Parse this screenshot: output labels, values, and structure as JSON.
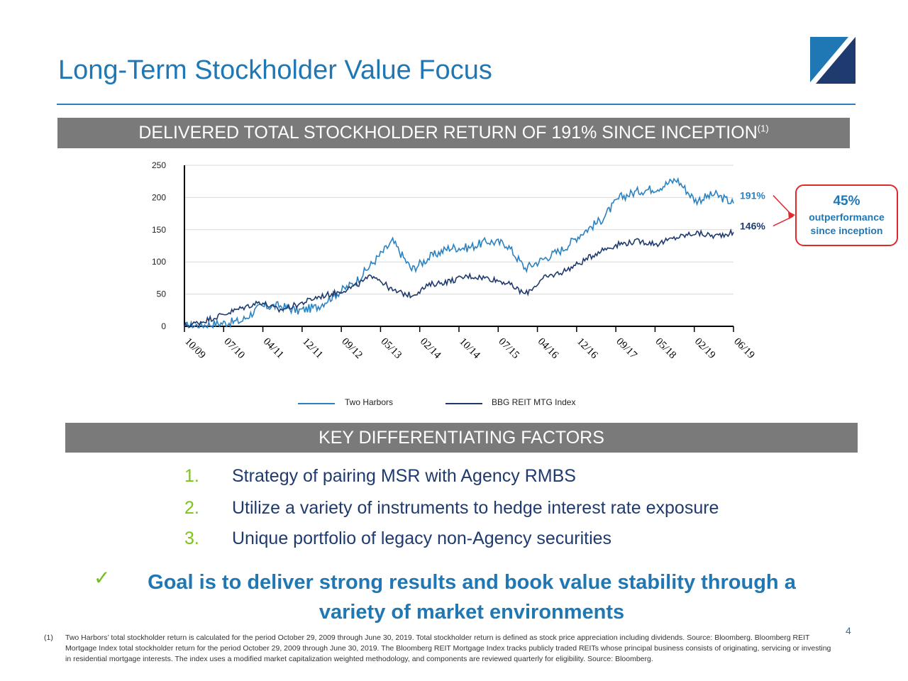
{
  "slide": {
    "title": "Long-Term Stockholder Value Focus",
    "page_number": "4",
    "colors": {
      "title_blue": "#1f77b4",
      "band_gray": "#7a7a7a",
      "navy": "#1f3a6e",
      "green": "#7dc21e",
      "red": "#e0282d"
    }
  },
  "banner": {
    "text": "DELIVERED TOTAL STOCKHOLDER RETURN OF 191% SINCE INCEPTION",
    "footnote_ref": "(1)"
  },
  "chart_data": {
    "type": "line",
    "ylim": [
      0,
      250
    ],
    "yticks": [
      0,
      50,
      100,
      150,
      200,
      250
    ],
    "x_tick_labels": [
      "10/09",
      "07/10",
      "04/11",
      "12/11",
      "09/12",
      "05/13",
      "02/14",
      "10/14",
      "07/15",
      "04/16",
      "12/16",
      "09/17",
      "05/18",
      "02/19",
      "06/19"
    ],
    "grid": "horizontal",
    "legend_position": "bottom",
    "series": [
      {
        "name": "Two Harbors",
        "color": "#2a82c2",
        "end_label": "191%",
        "values": [
          0,
          2,
          5,
          8,
          30,
          32,
          24,
          30,
          50,
          68,
          100,
          132,
          88,
          108,
          122,
          122,
          132,
          128,
          90,
          105,
          120,
          145,
          165,
          200,
          210,
          215,
          228,
          195,
          205,
          191
        ]
      },
      {
        "name": "BBG REIT MTG Index",
        "color": "#1f3a6e",
        "end_label": "146%",
        "values": [
          0,
          8,
          18,
          28,
          38,
          25,
          34,
          45,
          52,
          62,
          80,
          55,
          48,
          65,
          70,
          78,
          75,
          68,
          50,
          75,
          85,
          100,
          118,
          128,
          132,
          128,
          138,
          145,
          140,
          146
        ]
      }
    ]
  },
  "callout": {
    "value": "45%",
    "line1": "outperformance",
    "line2": "since inception"
  },
  "section2": {
    "header": "KEY DIFFERENTIATING FACTORS"
  },
  "factors": [
    {
      "num": "1.",
      "text": "Strategy of pairing MSR with Agency RMBS"
    },
    {
      "num": "2.",
      "text": "Utilize a variety of instruments to hedge interest rate exposure"
    },
    {
      "num": "3.",
      "text": "Unique portfolio of legacy non-Agency securities"
    }
  ],
  "goal": {
    "check": "✓",
    "line1": "Goal is to deliver strong results and book value stability through a",
    "line2": "variety of market environments"
  },
  "footnote": {
    "marker": "(1)",
    "text": "Two Harbors’ total stockholder return is calculated for the period October 29, 2009 through June 30, 2019. Total stockholder return is defined as stock price appreciation including dividends. Source: Bloomberg. Bloomberg REIT Mortgage Index total stockholder return for the period October 29, 2009 through June 30, 2019.  The Bloomberg REIT Mortgage Index tracks publicly traded REITs whose principal business consists of originating, servicing or investing in residential mortgage interests.  The index uses a modified market capitalization weighted methodology, and components are reviewed quarterly for eligibility.  Source: Bloomberg."
  }
}
